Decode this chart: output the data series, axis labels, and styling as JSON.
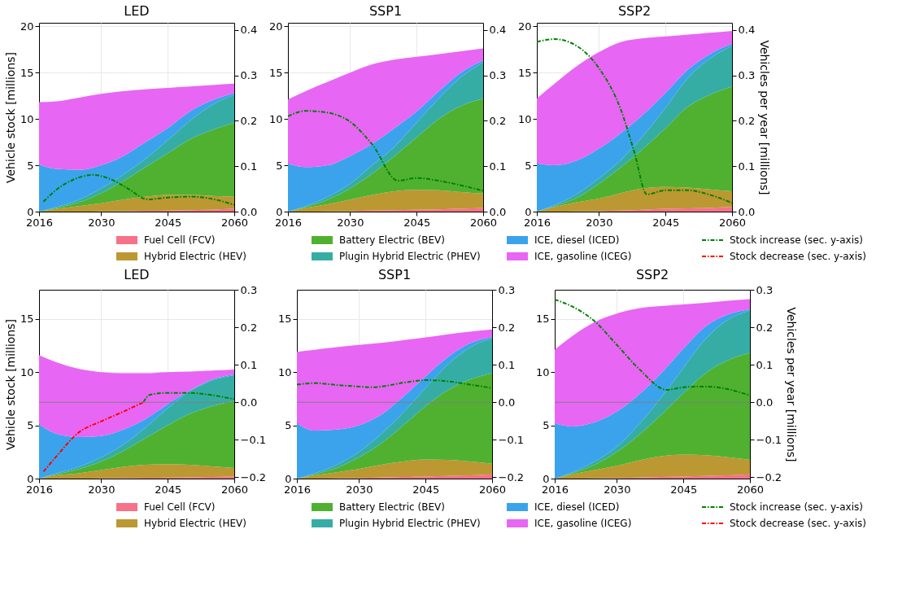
{
  "chart_data": [
    {
      "type": "area",
      "stacked": true,
      "title": "LED",
      "ylabel": "Vehicle stock [millions]",
      "x": [
        2016,
        2020,
        2025,
        2030,
        2035,
        2040,
        2045,
        2050,
        2055,
        2060
      ],
      "xlim": [
        2016,
        2060
      ],
      "xticks": [
        2016,
        2030,
        2045,
        2060
      ],
      "ylim": [
        0,
        20.37
      ],
      "yticks": [
        0,
        5,
        10,
        15,
        20
      ],
      "y2lim": [
        0,
        0.416
      ],
      "y2ticks": [
        {
          "value": 0,
          "label": "0.0"
        },
        0.1,
        0.2,
        0.3,
        0.4
      ],
      "grid": true,
      "legend": "bottom",
      "series": [
        {
          "name": "Fuel Cell (FCV)",
          "color": "#f77189",
          "values": [
            0,
            0,
            0,
            0.02,
            0.05,
            0.08,
            0.1,
            0.15,
            0.2,
            0.3
          ]
        },
        {
          "name": "Hybrid Electric (HEV)",
          "color": "#bb9832",
          "values": [
            0,
            0.3,
            0.6,
            0.88,
            1.25,
            1.52,
            1.7,
            1.65,
            1.5,
            1.3
          ]
        },
        {
          "name": "Battery Electric (BEV)",
          "color": "#50b131",
          "values": [
            0,
            0.1,
            0.4,
            1.1,
            2.0,
            3.2,
            4.5,
            6.0,
            7.1,
            8.0
          ]
        },
        {
          "name": "Plugin Hybrid Electric (PHEV)",
          "color": "#36ada4",
          "values": [
            0,
            0.1,
            0.3,
            0.5,
            0.7,
            0.9,
            1.4,
            2.0,
            2.7,
            3.0
          ]
        },
        {
          "name": "ICE, diesel (ICED)",
          "color": "#3ba3ec",
          "values": [
            5.1,
            4.1,
            3.2,
            2.5,
            2.0,
            1.8,
            1.3,
            1.0,
            0.5,
            0.2
          ]
        },
        {
          "name": "ICE, gasoline (ICEG)",
          "color": "#e866f4",
          "values": [
            6.7,
            7.3,
            7.8,
            7.7,
            7.0,
            5.7,
            4.35,
            2.7,
            1.65,
            1.0
          ]
        },
        {
          "name": "Stock increase (sec. y-axis)",
          "type": "line",
          "axis": "y2",
          "line_style": "dashdot",
          "color": "#008000",
          "x": [
            2017,
            2020,
            2025,
            2028,
            2032,
            2036,
            2040.5,
            2045,
            2050,
            2055,
            2060
          ],
          "values": [
            0.022,
            0.049,
            0.075,
            0.081,
            0.072,
            0.051,
            0.027,
            0.031,
            0.033,
            0.028,
            0.015
          ]
        }
      ]
    },
    {
      "type": "area",
      "stacked": true,
      "title": "SSP1",
      "x": [
        2016,
        2020,
        2025,
        2030,
        2035,
        2040,
        2045,
        2050,
        2055,
        2060
      ],
      "xlim": [
        2016,
        2060
      ],
      "xticks": [
        2016,
        2030,
        2045,
        2060
      ],
      "ylim": [
        0,
        20.37
      ],
      "yticks": [
        0,
        5,
        10,
        15,
        20
      ],
      "y2lim": [
        0,
        0.416
      ],
      "y2ticks": [
        {
          "value": 0,
          "label": "0.0"
        },
        0.1,
        0.2,
        0.3,
        0.4
      ],
      "grid": true,
      "legend": "bottom",
      "series": [
        {
          "name": "Fuel Cell (FCV)",
          "color": "#f77189",
          "values": [
            0,
            0,
            0.02,
            0.05,
            0.1,
            0.15,
            0.2,
            0.25,
            0.3,
            0.4
          ]
        },
        {
          "name": "Hybrid Electric (HEV)",
          "color": "#bb9832",
          "values": [
            0,
            0.4,
            0.78,
            1.25,
            1.7,
            2.05,
            2.15,
            2.05,
            1.8,
            1.55
          ]
        },
        {
          "name": "Battery Electric (BEV)",
          "color": "#50b131",
          "values": [
            0,
            0.1,
            0.5,
            1.2,
            2.3,
            3.8,
            5.65,
            7.7,
            9.3,
            10.25
          ]
        },
        {
          "name": "Plugin Hybrid Electric (PHEV)",
          "color": "#36ada4",
          "values": [
            0,
            0.1,
            0.3,
            0.5,
            0.9,
            1.0,
            1.6,
            2.2,
            3.1,
            3.9
          ]
        },
        {
          "name": "ICE, diesel (ICED)",
          "color": "#3ba3ec",
          "values": [
            5.2,
            4.2,
            3.4,
            3.0,
            2.3,
            2.0,
            1.2,
            0.8,
            0.5,
            0.2
          ]
        },
        {
          "name": "ICE, gasoline (ICEG)",
          "color": "#e866f4",
          "values": [
            6.9,
            8.2,
            9.0,
            9.0,
            8.6,
            7.4,
            5.9,
            4.0,
            2.3,
            1.3
          ]
        },
        {
          "name": "Stock increase (sec. y-axis)",
          "type": "line",
          "axis": "y2",
          "line_style": "dashdot",
          "color": "#008000",
          "x": [
            2016,
            2020,
            2025,
            2030,
            2035,
            2040.8,
            2045,
            2050,
            2055,
            2060
          ],
          "values": [
            0.21,
            0.222,
            0.218,
            0.198,
            0.148,
            0.068,
            0.074,
            0.068,
            0.058,
            0.046
          ]
        }
      ]
    },
    {
      "type": "area",
      "stacked": true,
      "title": "SSP2",
      "y2label": "Vehicles per year [millions]",
      "x": [
        2016,
        2020,
        2025,
        2030,
        2035,
        2040,
        2045,
        2050,
        2055,
        2060
      ],
      "xlim": [
        2016,
        2060
      ],
      "xticks": [
        2016,
        2030,
        2045,
        2060
      ],
      "ylim": [
        0,
        20.37
      ],
      "yticks": [
        0,
        5,
        10,
        15,
        20
      ],
      "y2lim": [
        0,
        0.416
      ],
      "y2ticks": [
        {
          "value": 0,
          "label": "0.0"
        },
        0.1,
        0.2,
        0.3,
        0.4
      ],
      "grid": true,
      "legend": "bottom",
      "series": [
        {
          "name": "Fuel Cell (FCV)",
          "color": "#f77189",
          "values": [
            0,
            0,
            0.02,
            0.05,
            0.1,
            0.2,
            0.3,
            0.35,
            0.4,
            0.5
          ]
        },
        {
          "name": "Hybrid Electric (HEV)",
          "color": "#bb9832",
          "values": [
            0,
            0.5,
            0.98,
            1.35,
            1.9,
            2.3,
            2.35,
            2.25,
            2.0,
            1.7
          ]
        },
        {
          "name": "Battery Electric (BEV)",
          "color": "#50b131",
          "values": [
            0,
            0.1,
            0.5,
            1.6,
            2.8,
            4.3,
            6.35,
            8.7,
            10.2,
            11.3
          ]
        },
        {
          "name": "Plugin Hybrid Electric (PHEV)",
          "color": "#36ada4",
          "values": [
            0,
            0.1,
            0.4,
            0.6,
            0.8,
            1.4,
            2.2,
            3.1,
            3.9,
            4.4
          ]
        },
        {
          "name": "ICE, diesel (ICED)",
          "color": "#3ba3ec",
          "values": [
            5.2,
            4.3,
            3.6,
            3.2,
            2.9,
            2.3,
            1.6,
            0.9,
            0.5,
            0.2
          ]
        },
        {
          "name": "ICE, gasoline (ICEG)",
          "color": "#e866f4",
          "values": [
            7.0,
            8.8,
            10.2,
            10.4,
            9.8,
            8.2,
            6.1,
            3.8,
            2.3,
            1.4
          ]
        },
        {
          "name": "Stock increase (sec. y-axis)",
          "type": "line",
          "axis": "y2",
          "line_style": "dashdot",
          "color": "#008000",
          "x": [
            2016,
            2020,
            2025,
            2030,
            2035,
            2038,
            2040.8,
            2045,
            2050,
            2055,
            2060
          ],
          "values": [
            0.374,
            0.38,
            0.365,
            0.316,
            0.223,
            0.13,
            0.038,
            0.047,
            0.047,
            0.037,
            0.019
          ]
        }
      ]
    },
    {
      "type": "area",
      "stacked": true,
      "title": "LED",
      "ylabel": "Vehicle stock [millions]",
      "x": [
        2016,
        2020,
        2025,
        2030,
        2035,
        2040,
        2045,
        2050,
        2055,
        2060
      ],
      "xlim": [
        2016,
        2060
      ],
      "xticks": [
        2016,
        2030,
        2045,
        2060
      ],
      "ylim": [
        0,
        17.73
      ],
      "yticks": [
        0,
        5,
        10,
        15
      ],
      "y2lim": [
        -0.2035,
        0.3
      ],
      "y2ticks": [
        {
          "value": -0.2,
          "label": "−0.2"
        },
        {
          "value": -0.1,
          "label": "−0.1"
        },
        {
          "value": 0,
          "label": "0.0"
        },
        0.1,
        0.2,
        0.3
      ],
      "grid": true,
      "legend": "bottom",
      "ref_lines": [
        {
          "axis": "y2",
          "value": 0,
          "color": "#808080"
        }
      ],
      "series": [
        {
          "name": "Fuel Cell (FCV)",
          "color": "#f77189",
          "values": [
            0,
            0,
            0,
            0.02,
            0.05,
            0.08,
            0.1,
            0.12,
            0.15,
            0.2
          ]
        },
        {
          "name": "Hybrid Electric (HEV)",
          "color": "#bb9832",
          "values": [
            0,
            0.3,
            0.5,
            0.78,
            1.05,
            1.22,
            1.25,
            1.18,
            1.0,
            0.8
          ]
        },
        {
          "name": "Battery Electric (BEV)",
          "color": "#50b131",
          "values": [
            0,
            0.1,
            0.4,
            0.8,
            1.5,
            2.5,
            3.65,
            4.8,
            5.65,
            6.3
          ]
        },
        {
          "name": "Plugin Hybrid Electric (PHEV)",
          "color": "#36ada4",
          "values": [
            0,
            0.1,
            0.2,
            0.4,
            0.6,
            1.0,
            1.6,
            2.1,
            2.4,
            2.4
          ]
        },
        {
          "name": "ICE, diesel (ICED)",
          "color": "#3ba3ec",
          "values": [
            5.1,
            3.7,
            2.8,
            2.0,
            1.4,
            0.8,
            0.4,
            0.1,
            0.1,
            0.1
          ]
        },
        {
          "name": "ICE, gasoline (ICEG)",
          "color": "#e866f4",
          "values": [
            6.5,
            6.7,
            6.4,
            6.0,
            5.3,
            4.3,
            3.0,
            1.75,
            0.85,
            0.45
          ]
        },
        {
          "name": "Stock decrease (sec. y-axis)",
          "type": "line",
          "axis": "y2",
          "line_style": "dashdot",
          "color": "#ff0000",
          "x": [
            2017,
            2020,
            2025,
            2030,
            2035,
            2039.5
          ],
          "values": [
            -0.185,
            -0.143,
            -0.08,
            -0.051,
            -0.025,
            0.0
          ]
        },
        {
          "name": "Stock increase (sec. y-axis)",
          "type": "line",
          "axis": "y2",
          "line_style": "dashdot",
          "color": "#008000",
          "x": [
            2039.5,
            2041,
            2045,
            2050,
            2055,
            2060
          ],
          "values": [
            0.0,
            0.02,
            0.025,
            0.025,
            0.019,
            0.008
          ]
        }
      ]
    },
    {
      "type": "area",
      "stacked": true,
      "title": "SSP1",
      "x": [
        2016,
        2020,
        2025,
        2030,
        2035,
        2040,
        2045,
        2050,
        2055,
        2060
      ],
      "xlim": [
        2016,
        2060
      ],
      "xticks": [
        2016,
        2030,
        2045,
        2060
      ],
      "ylim": [
        0,
        17.73
      ],
      "yticks": [
        0,
        5,
        10,
        15
      ],
      "y2lim": [
        -0.2035,
        0.3
      ],
      "y2ticks": [
        {
          "value": -0.2,
          "label": "−0.2"
        },
        {
          "value": -0.1,
          "label": "−0.1"
        },
        {
          "value": 0,
          "label": "0.0"
        },
        0.1,
        0.2,
        0.3
      ],
      "grid": true,
      "legend": "bottom",
      "ref_lines": [
        {
          "axis": "y2",
          "value": 0,
          "color": "#808080"
        }
      ],
      "series": [
        {
          "name": "Fuel Cell (FCV)",
          "color": "#f77189",
          "values": [
            0,
            0,
            0.02,
            0.05,
            0.1,
            0.15,
            0.2,
            0.25,
            0.3,
            0.4
          ]
        },
        {
          "name": "Hybrid Electric (HEV)",
          "color": "#bb9832",
          "values": [
            0,
            0.3,
            0.58,
            0.85,
            1.2,
            1.45,
            1.6,
            1.5,
            1.3,
            1.0
          ]
        },
        {
          "name": "Battery Electric (BEV)",
          "color": "#50b131",
          "values": [
            0,
            0.1,
            0.4,
            1.1,
            2.0,
            3.4,
            5.0,
            6.55,
            7.7,
            8.5
          ]
        },
        {
          "name": "Plugin Hybrid Electric (PHEV)",
          "color": "#36ada4",
          "values": [
            0,
            0.1,
            0.3,
            0.5,
            0.9,
            1.2,
            1.7,
            2.4,
            3.0,
            3.3
          ]
        },
        {
          "name": "ICE, diesel (ICED)",
          "color": "#3ba3ec",
          "values": [
            5.2,
            4.0,
            3.3,
            2.5,
            1.8,
            1.5,
            1.1,
            0.7,
            0.4,
            0.1
          ]
        },
        {
          "name": "ICE, gasoline (ICEG)",
          "color": "#e866f4",
          "values": [
            6.7,
            7.6,
            7.75,
            7.55,
            6.75,
            5.3,
            3.65,
            2.15,
            1.1,
            0.7
          ]
        },
        {
          "name": "Stock increase (sec. y-axis)",
          "type": "line",
          "axis": "y2",
          "line_style": "dashdot",
          "color": "#008000",
          "x": [
            2016,
            2020,
            2025,
            2030,
            2033,
            2035,
            2040,
            2045,
            2050,
            2055,
            2060
          ],
          "values": [
            0.047,
            0.051,
            0.046,
            0.042,
            0.04,
            0.042,
            0.052,
            0.059,
            0.056,
            0.047,
            0.038
          ]
        }
      ]
    },
    {
      "type": "area",
      "stacked": true,
      "title": "SSP2",
      "y2label": "Vehicles per year [millions]",
      "x": [
        2016,
        2020,
        2025,
        2030,
        2035,
        2040,
        2045,
        2050,
        2055,
        2060
      ],
      "xlim": [
        2016,
        2060
      ],
      "xticks": [
        2016,
        2030,
        2045,
        2060
      ],
      "ylim": [
        0,
        17.73
      ],
      "yticks": [
        0,
        5,
        10,
        15
      ],
      "y2lim": [
        -0.2035,
        0.3
      ],
      "y2ticks": [
        {
          "value": -0.2,
          "label": "−0.2"
        },
        {
          "value": -0.1,
          "label": "−0.1"
        },
        {
          "value": 0,
          "label": "0.0"
        },
        0.1,
        0.2,
        0.3
      ],
      "grid": true,
      "legend": "bottom",
      "ref_lines": [
        {
          "axis": "y2",
          "value": 0,
          "color": "#808080"
        }
      ],
      "series": [
        {
          "name": "Fuel Cell (FCV)",
          "color": "#f77189",
          "values": [
            0,
            0,
            0.02,
            0.05,
            0.1,
            0.15,
            0.2,
            0.25,
            0.3,
            0.4
          ]
        },
        {
          "name": "Hybrid Electric (HEV)",
          "color": "#bb9832",
          "values": [
            0,
            0.4,
            0.78,
            1.15,
            1.6,
            1.95,
            2.05,
            1.95,
            1.7,
            1.35
          ]
        },
        {
          "name": "Battery Electric (BEV)",
          "color": "#50b131",
          "values": [
            0,
            0.1,
            0.5,
            1.3,
            2.4,
            3.9,
            5.75,
            7.7,
            9.1,
            10.05
          ]
        },
        {
          "name": "Plugin Hybrid Electric (PHEV)",
          "color": "#36ada4",
          "values": [
            0,
            0.1,
            0.3,
            0.5,
            1.0,
            1.6,
            2.4,
            3.2,
            3.8,
            4.0
          ]
        },
        {
          "name": "ICE, diesel (ICED)",
          "color": "#3ba3ec",
          "values": [
            5.2,
            4.3,
            3.7,
            3.3,
            2.8,
            2.3,
            1.8,
            1.2,
            0.5,
            0.1
          ]
        },
        {
          "name": "ICE, gasoline (ICEG)",
          "color": "#e866f4",
          "values": [
            6.9,
            8.5,
            9.4,
            9.2,
            8.1,
            6.3,
            4.15,
            2.2,
            1.3,
            0.95
          ]
        },
        {
          "name": "Stock increase (sec. y-axis)",
          "type": "line",
          "axis": "y2",
          "line_style": "dashdot",
          "color": "#008000",
          "x": [
            2016,
            2020,
            2025,
            2030,
            2035,
            2041.3,
            2045,
            2050,
            2055,
            2060
          ],
          "values": [
            0.274,
            0.255,
            0.216,
            0.153,
            0.089,
            0.033,
            0.04,
            0.042,
            0.035,
            0.018
          ]
        }
      ]
    }
  ]
}
